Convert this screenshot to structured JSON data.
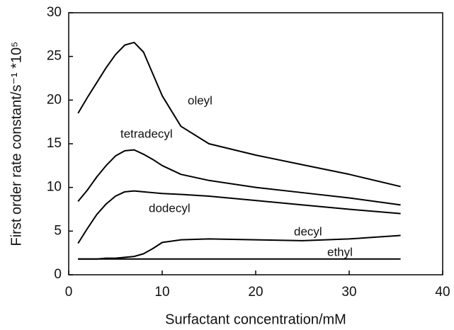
{
  "chart_data": {
    "type": "line",
    "xlabel": "Surfactant concentration/mM",
    "ylabel": "First order rate constant/s⁻¹ *10⁵",
    "x": [
      1,
      2,
      3,
      4,
      5,
      6,
      7,
      8,
      9,
      10,
      12,
      15,
      20,
      25,
      30,
      35.5
    ],
    "series": [
      {
        "name": "oleyl",
        "color": "#000000",
        "values": [
          18.5,
          20.3,
          22.0,
          23.7,
          25.2,
          26.3,
          26.6,
          25.5,
          23.0,
          20.5,
          17.0,
          15.0,
          13.7,
          12.6,
          11.5,
          10.1
        ]
      },
      {
        "name": "tetradecyl",
        "color": "#000000",
        "values": [
          8.4,
          9.7,
          11.2,
          12.5,
          13.6,
          14.2,
          14.3,
          13.8,
          13.2,
          12.5,
          11.5,
          10.8,
          10.0,
          9.4,
          8.8,
          8.0
        ]
      },
      {
        "name": "dodecyl",
        "color": "#000000",
        "values": [
          3.6,
          5.3,
          6.9,
          8.1,
          9.0,
          9.5,
          9.6,
          9.5,
          9.4,
          9.3,
          9.2,
          9.0,
          8.5,
          8.0,
          7.5,
          7.0
        ]
      },
      {
        "name": "decyl",
        "color": "#000000",
        "values": [
          1.8,
          1.8,
          1.8,
          1.9,
          1.9,
          2.0,
          2.1,
          2.4,
          3.0,
          3.7,
          4.0,
          4.1,
          4.0,
          3.9,
          4.1,
          4.5
        ]
      },
      {
        "name": "ethyl",
        "color": "#000000",
        "values": [
          1.8,
          1.8,
          1.8,
          1.8,
          1.8,
          1.8,
          1.8,
          1.8,
          1.8,
          1.8,
          1.8,
          1.8,
          1.8,
          1.8,
          1.8,
          1.8
        ]
      }
    ],
    "xlim": [
      0,
      40
    ],
    "xticks": [
      0,
      10,
      20,
      30,
      40
    ],
    "ylim": [
      0,
      30
    ],
    "yticks": [
      0,
      5,
      10,
      15,
      20,
      25,
      30
    ]
  }
}
